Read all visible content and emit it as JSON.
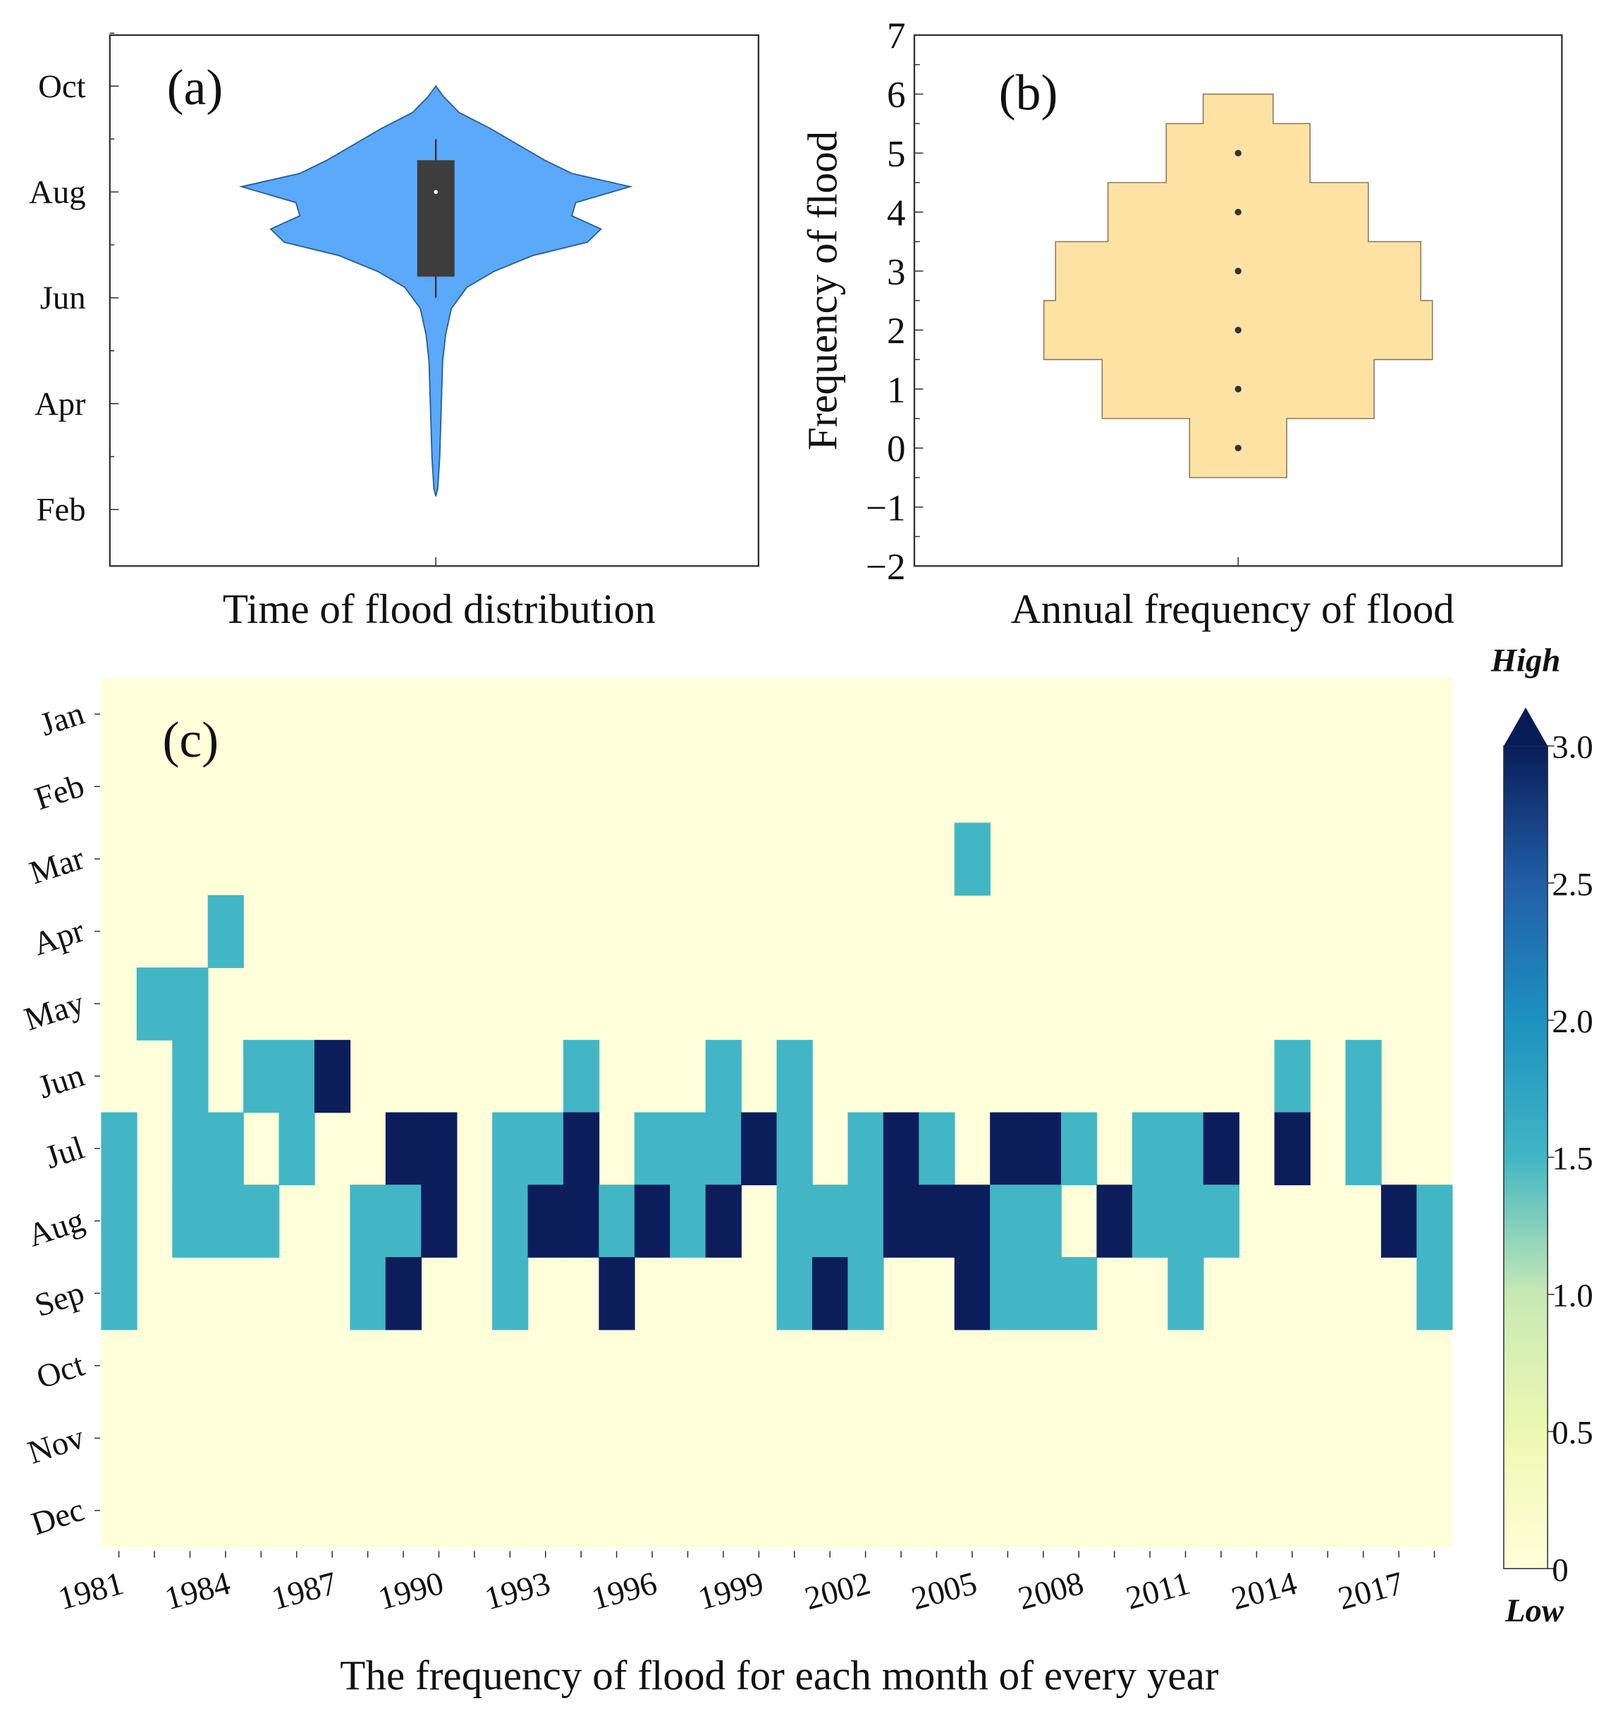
{
  "chart_data": [
    {
      "type": "violin",
      "panel_label": "(a)",
      "xlabel": "Time of flood distribution",
      "y_tick_labels": [
        "Feb",
        "Apr",
        "Jun",
        "Aug",
        "Oct"
      ],
      "y_tick_values": [
        2,
        4,
        6,
        8,
        10
      ],
      "ylim": [
        1,
        11
      ],
      "density_profile": [
        [
          10,
          0
        ],
        [
          9.8,
          0.04
        ],
        [
          9.5,
          0.12
        ],
        [
          9.2,
          0.28
        ],
        [
          8.9,
          0.42
        ],
        [
          8.6,
          0.56
        ],
        [
          8.35,
          0.7
        ],
        [
          8.1,
          1.0
        ],
        [
          7.8,
          0.72
        ],
        [
          7.55,
          0.7
        ],
        [
          7.3,
          0.85
        ],
        [
          7.05,
          0.78
        ],
        [
          6.8,
          0.5
        ],
        [
          6.5,
          0.3
        ],
        [
          6.2,
          0.16
        ],
        [
          5.8,
          0.08
        ],
        [
          5.3,
          0.05
        ],
        [
          4.8,
          0.035
        ],
        [
          4.2,
          0.03
        ],
        [
          3.6,
          0.025
        ],
        [
          3.0,
          0.02
        ],
        [
          2.4,
          0.01
        ],
        [
          2.25,
          0
        ]
      ],
      "box": {
        "q1": 6.4,
        "median": 8.0,
        "q3": 8.6,
        "whisker_low": 6.0,
        "whisker_high": 9.0
      },
      "fill_color": "#5aa9fa"
    },
    {
      "type": "dot_histogram",
      "panel_label": "(b)",
      "xlabel": "Annual frequency of flood",
      "ylabel": "Frequency of flood",
      "ylim": [
        -2,
        7
      ],
      "y_ticks": [
        -2,
        -1,
        0,
        1,
        2,
        3,
        4,
        5,
        6,
        7
      ],
      "points": [
        0,
        1,
        2,
        3,
        4,
        5
      ],
      "step_profile": [
        [
          -0.5,
          0.5,
          0.25
        ],
        [
          0.5,
          1.5,
          0.7
        ],
        [
          1.5,
          2.5,
          1.0
        ],
        [
          2.5,
          3.5,
          0.94
        ],
        [
          3.5,
          4.5,
          0.67
        ],
        [
          4.5,
          5.5,
          0.37
        ],
        [
          5.5,
          6.0,
          0.18
        ]
      ],
      "fill_color": "#fde2a4"
    },
    {
      "type": "heatmap",
      "panel_label": "(c)",
      "xlabel": "The frequency of flood for each month of every year",
      "rows": [
        "Jan",
        "Feb",
        "Mar",
        "Apr",
        "May",
        "Jun",
        "Jul",
        "Aug",
        "Sep",
        "Oct",
        "Nov",
        "Dec"
      ],
      "year_start": 1981,
      "year_end": 2018,
      "x_tick_labels": [
        "1981",
        "1984",
        "1987",
        "1990",
        "1993",
        "1996",
        "1999",
        "2002",
        "2005",
        "2008",
        "2011",
        "2014",
        "2017"
      ],
      "colorbar": {
        "min": 0,
        "max": 3,
        "ticks": [
          "0",
          "0.5",
          "1.0",
          "1.5",
          "2.0",
          "2.5",
          "3.0"
        ],
        "high_label": "High",
        "low_label": "Low"
      },
      "cells": {
        "1981": {
          "Jul": 1.5,
          "Aug": 1.5,
          "Sep": 1.5
        },
        "1982": {
          "May": 1.5
        },
        "1983": {
          "May": 1.5,
          "Jun": 1.5,
          "Jul": 1.5,
          "Aug": 1.5
        },
        "1984": {
          "Apr": 1.5,
          "Jul": 1.5,
          "Aug": 1.5
        },
        "1985": {
          "Jun": 1.5,
          "Aug": 1.5
        },
        "1986": {
          "Jun": 1.5,
          "Jul": 1.5
        },
        "1987": {
          "Jun": 3
        },
        "1988": {
          "Aug": 1.5,
          "Sep": 1.5
        },
        "1989": {
          "Jul": 3,
          "Aug": 1.5,
          "Sep": 3
        },
        "1990": {
          "Jul": 3,
          "Aug": 3
        },
        "1992": {
          "Jul": 1.5,
          "Aug": 1.5,
          "Sep": 1.5
        },
        "1993": {
          "Jul": 1.5,
          "Aug": 3
        },
        "1994": {
          "Jun": 1.5,
          "Jul": 3,
          "Aug": 3
        },
        "1995": {
          "Aug": 1.5,
          "Sep": 3
        },
        "1996": {
          "Jul": 1.5,
          "Aug": 3
        },
        "1997": {
          "Jul": 1.5,
          "Aug": 1.5
        },
        "1998": {
          "Jun": 1.5,
          "Jul": 1.5,
          "Aug": 3
        },
        "1999": {
          "Jul": 3
        },
        "2000": {
          "Jun": 1.5,
          "Jul": 1.5,
          "Aug": 1.5,
          "Sep": 1.5
        },
        "2001": {
          "Aug": 1.5,
          "Sep": 3
        },
        "2002": {
          "Jul": 1.5,
          "Aug": 1.5,
          "Sep": 1.5
        },
        "2003": {
          "Jul": 3,
          "Aug": 3
        },
        "2004": {
          "Jul": 1.5,
          "Aug": 3
        },
        "2005": {
          "Mar": 1.5,
          "Aug": 3,
          "Sep": 3
        },
        "2006": {
          "Jul": 3,
          "Aug": 1.5,
          "Sep": 1.5
        },
        "2007": {
          "Jul": 3,
          "Aug": 1.5,
          "Sep": 1.5
        },
        "2008": {
          "Jul": 1.5,
          "Sep": 1.5
        },
        "2009": {
          "Aug": 3
        },
        "2010": {
          "Jul": 1.5,
          "Aug": 1.5
        },
        "2011": {
          "Jul": 1.5,
          "Aug": 1.5,
          "Sep": 1.5
        },
        "2012": {
          "Jul": 3,
          "Aug": 1.5
        },
        "2014": {
          "Jun": 1.5,
          "Jul": 3
        },
        "2016": {
          "Jun": 1.5,
          "Jul": 1.5
        },
        "2017": {
          "Aug": 3
        },
        "2018": {
          "Aug": 1.5,
          "Sep": 1.5
        }
      }
    }
  ]
}
